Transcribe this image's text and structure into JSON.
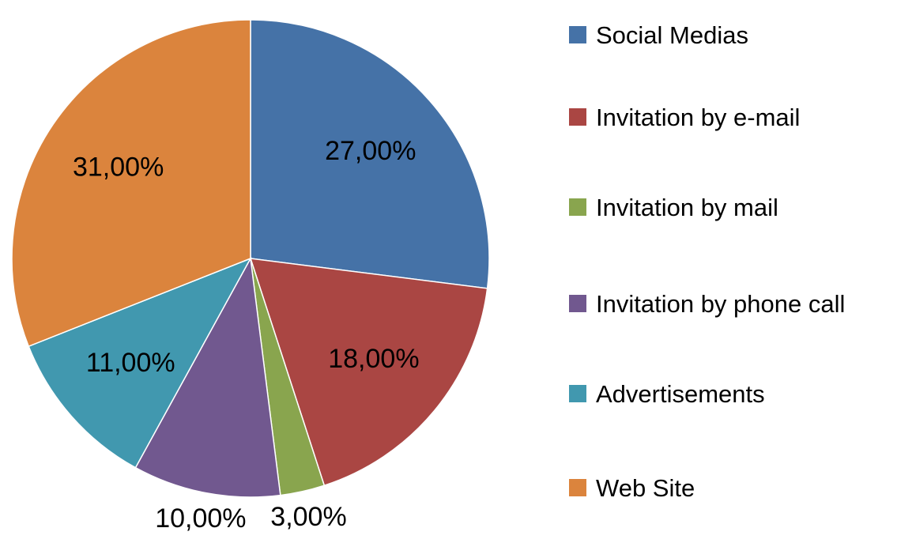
{
  "chart_data": {
    "type": "pie",
    "categories": [
      "Social Medias",
      "Invitation by e-mail",
      "Invitation by mail",
      "Invitation by phone call",
      "Advertisements",
      "Web Site"
    ],
    "values": [
      27,
      18,
      3,
      10,
      11,
      31
    ],
    "value_labels": [
      "27,00%",
      "18,00%",
      "3,00%",
      "10,00%",
      "11,00%",
      "31,00%"
    ],
    "colors": [
      "#4572a7",
      "#aa4643",
      "#89a54e",
      "#71588f",
      "#4198af",
      "#db843d"
    ],
    "legend": "right"
  }
}
